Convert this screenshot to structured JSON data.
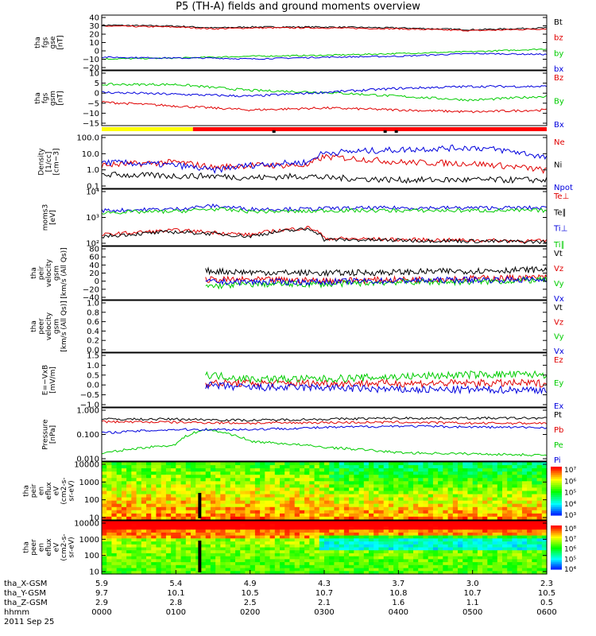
{
  "title": "P5 (TH-A) fields and ground moments overview",
  "colors": {
    "black": "#000000",
    "red": "#e00000",
    "green": "#00cc00",
    "blue": "#0000dd",
    "bar_yellow": "#ffff00",
    "bar_red": "#ff0000"
  },
  "chart_data": [
    {
      "type": "line",
      "ylabel": [
        "tha",
        "fgs",
        "gse",
        "[nT]"
      ],
      "ylim": [
        -20,
        40
      ],
      "yticks": [
        "40",
        "30",
        "20",
        "10",
        "0",
        "−10",
        "−20"
      ],
      "legend": [
        {
          "name": "Bt",
          "color": "black"
        },
        {
          "name": "bz",
          "color": "red"
        },
        {
          "name": "by",
          "color": "green"
        },
        {
          "name": "bx",
          "color": "blue"
        }
      ],
      "series": [
        {
          "name": "Bt",
          "x": [
            0,
            1,
            1.5,
            2,
            3,
            4,
            5,
            6
          ],
          "values": [
            29,
            28,
            26,
            27,
            27,
            26,
            24,
            26
          ]
        },
        {
          "name": "bz",
          "x": [
            0,
            1,
            1.5,
            2,
            3,
            4,
            5,
            6
          ],
          "values": [
            28,
            27,
            25,
            26,
            26,
            25,
            23,
            25
          ]
        },
        {
          "name": "by",
          "x": [
            0,
            1,
            1.5,
            2,
            3,
            4,
            5,
            6
          ],
          "values": [
            -8,
            -7,
            -6,
            -5,
            -4,
            -2,
            0,
            3
          ]
        },
        {
          "name": "bx",
          "x": [
            0,
            1,
            1.5,
            2,
            3,
            4,
            5,
            6
          ],
          "values": [
            -6,
            -7,
            -7,
            -8,
            -6,
            -5,
            -2,
            -3
          ]
        }
      ]
    },
    {
      "type": "line",
      "ylabel": [
        "tha",
        "fgs",
        "gsm",
        "[nT]"
      ],
      "ylim": [
        -18,
        10
      ],
      "yticks": [
        "10",
        "5",
        "0",
        "−5",
        "−10",
        "−15"
      ],
      "legend": [
        {
          "name": "Bz",
          "color": "red"
        },
        {
          "name": "By",
          "color": "green"
        },
        {
          "name": "Bx",
          "color": "blue"
        }
      ],
      "series": [
        {
          "name": "Bz",
          "x": [
            0,
            1,
            2,
            3,
            4,
            5,
            6
          ],
          "values": [
            -6,
            -8,
            -10,
            -9,
            -10,
            -11,
            -10
          ]
        },
        {
          "name": "By",
          "x": [
            0,
            1,
            2,
            3,
            4,
            5,
            6
          ],
          "values": [
            3,
            3,
            0,
            -1,
            -3,
            -5,
            -3
          ]
        },
        {
          "name": "Bx",
          "x": [
            0,
            1,
            2,
            3,
            4,
            5,
            6
          ],
          "values": [
            -1,
            -2,
            -3,
            -1,
            1,
            2,
            2
          ]
        }
      ]
    },
    {
      "type": "line",
      "scale": "log",
      "ylabel": [
        "Density",
        "[1/cc]",
        "[cm−3]"
      ],
      "ylim": [
        0.1,
        100
      ],
      "yticks": [
        "100.0",
        "10.0",
        "1.0",
        "0.1"
      ],
      "legend": [
        {
          "name": "Ne",
          "color": "red"
        },
        {
          "name": "Ni",
          "color": "black"
        },
        {
          "name": "Npot",
          "color": "blue"
        }
      ],
      "series": [
        {
          "name": "Ne",
          "x": [
            0,
            1,
            1.5,
            2,
            2.8,
            3,
            4,
            5,
            6
          ],
          "values": [
            2,
            3,
            1.5,
            2,
            2,
            6,
            3,
            2.5,
            1
          ]
        },
        {
          "name": "Ni",
          "x": [
            0,
            1,
            1.5,
            2,
            2.8,
            3,
            4,
            5,
            6
          ],
          "values": [
            0.6,
            0.5,
            0.5,
            0.4,
            0.5,
            0.4,
            0.3,
            0.3,
            0.3
          ]
        },
        {
          "name": "Npot",
          "x": [
            0,
            1,
            1.5,
            2,
            2.8,
            3,
            4,
            5,
            6
          ],
          "values": [
            3,
            2,
            1,
            2,
            3,
            10,
            15,
            20,
            5
          ]
        }
      ]
    },
    {
      "type": "line",
      "scale": "log",
      "ylabel": [
        "moms3",
        "[eV]"
      ],
      "ylim": [
        20,
        100000
      ],
      "yticks": [
        "10⁴",
        "10³",
        "10²"
      ],
      "legend": [
        {
          "name": "Te⊥",
          "color": "red"
        },
        {
          "name": "Te∥",
          "color": "black"
        },
        {
          "name": "Ti⊥",
          "color": "blue"
        },
        {
          "name": "Ti∥",
          "color": "green"
        }
      ],
      "series": [
        {
          "name": "Te⊥",
          "x": [
            0,
            1,
            1.5,
            2,
            2.8,
            3,
            4,
            5,
            6
          ],
          "values": [
            100,
            200,
            150,
            100,
            300,
            60,
            50,
            45,
            40
          ]
        },
        {
          "name": "Te∥",
          "x": [
            0,
            1,
            1.5,
            2,
            2.8,
            3,
            4,
            5,
            6
          ],
          "values": [
            80,
            160,
            120,
            80,
            250,
            50,
            45,
            40,
            35
          ]
        },
        {
          "name": "Ti⊥",
          "x": [
            0,
            1,
            1.5,
            2,
            2.8,
            3,
            4,
            5,
            6
          ],
          "values": [
            4000,
            5000,
            8000,
            5000,
            5000,
            5500,
            6000,
            6000,
            6000
          ]
        },
        {
          "name": "Ti∥",
          "x": [
            0,
            1,
            1.5,
            2,
            2.8,
            3,
            4,
            5,
            6
          ],
          "values": [
            3000,
            3500,
            5000,
            3500,
            3500,
            4000,
            4000,
            4000,
            4000
          ]
        }
      ]
    },
    {
      "type": "line",
      "ylabel": [
        "tha",
        "peir",
        "velocity",
        "gsm",
        "[km/s (All Qs)]"
      ],
      "ylim": [
        -40,
        80
      ],
      "yticks": [
        "80",
        "60",
        "40",
        "20",
        "0",
        "−20",
        "−40"
      ],
      "legend": [
        {
          "name": "Vt",
          "color": "black"
        },
        {
          "name": "Vz",
          "color": "red"
        },
        {
          "name": "Vy",
          "color": "green"
        },
        {
          "name": "Vx",
          "color": "blue"
        }
      ],
      "series": [
        {
          "name": "Vt",
          "x": [
            1.4,
            2,
            3,
            4,
            5,
            6
          ],
          "values": [
            25,
            22,
            20,
            22,
            25,
            28
          ]
        },
        {
          "name": "Vz",
          "x": [
            1.4,
            2,
            3,
            4,
            5,
            6
          ],
          "values": [
            5,
            5,
            3,
            5,
            8,
            10
          ]
        },
        {
          "name": "Vy",
          "x": [
            1.4,
            2,
            3,
            4,
            5,
            6
          ],
          "values": [
            -10,
            -5,
            -5,
            0,
            0,
            5
          ]
        },
        {
          "name": "Vx",
          "x": [
            1.4,
            2,
            3,
            4,
            5,
            6
          ],
          "values": [
            0,
            0,
            0,
            3,
            5,
            5
          ]
        }
      ]
    },
    {
      "type": "line",
      "ylabel": [
        "tha",
        "peer",
        "velocity",
        "gsm",
        "[km/s (All Qs)]"
      ],
      "ylim": [
        0,
        1
      ],
      "yticks": [
        "1.0",
        "0.8",
        "0.6",
        "0.4",
        "0.2",
        "0.0"
      ],
      "legend": [
        {
          "name": "Vt",
          "color": "black"
        },
        {
          "name": "Vz",
          "color": "red"
        },
        {
          "name": "Vy",
          "color": "green"
        },
        {
          "name": "Vx",
          "color": "blue"
        }
      ],
      "series": []
    },
    {
      "type": "line",
      "ylabel": [
        "E=−VxB",
        "[mV/m]"
      ],
      "ylim": [
        -1,
        1.5
      ],
      "yticks": [
        "1.5",
        "1.0",
        "0.5",
        "0.0",
        "−0.5",
        "−1.0"
      ],
      "legend": [
        {
          "name": "Ez",
          "color": "red"
        },
        {
          "name": "Ey",
          "color": "green"
        },
        {
          "name": "Ex",
          "color": "blue"
        }
      ],
      "series": [
        {
          "name": "Ez",
          "x": [
            1.4,
            2,
            3,
            4,
            5,
            6
          ],
          "values": [
            0.1,
            0.1,
            0.1,
            0.1,
            0.1,
            0.1
          ]
        },
        {
          "name": "Ey",
          "x": [
            1.4,
            2,
            3,
            4,
            5,
            6
          ],
          "values": [
            0.5,
            0.3,
            0.3,
            0.4,
            0.5,
            0.5
          ]
        },
        {
          "name": "Ex",
          "x": [
            1.4,
            2,
            3,
            4,
            5,
            6
          ],
          "values": [
            0,
            -0.1,
            -0.1,
            -0.2,
            -0.2,
            -0.2
          ]
        }
      ]
    },
    {
      "type": "line",
      "scale": "log",
      "ylabel": [
        "Pressure",
        "[nPa]"
      ],
      "ylim": [
        0.003,
        1.5
      ],
      "yticks": [
        "1.000",
        "0.100",
        "0.010"
      ],
      "legend": [
        {
          "name": "Pt",
          "color": "black"
        },
        {
          "name": "Pb",
          "color": "red"
        },
        {
          "name": "Pe",
          "color": "green"
        },
        {
          "name": "Pi",
          "color": "blue"
        }
      ],
      "series": [
        {
          "name": "Pt",
          "x": [
            0,
            1,
            2,
            3,
            4,
            5,
            6
          ],
          "values": [
            0.4,
            0.4,
            0.35,
            0.4,
            0.45,
            0.45,
            0.45
          ]
        },
        {
          "name": "Pb",
          "x": [
            0,
            1,
            2,
            3,
            4,
            5,
            6
          ],
          "values": [
            0.3,
            0.28,
            0.25,
            0.27,
            0.28,
            0.25,
            0.25
          ]
        },
        {
          "name": "Pe",
          "x": [
            0,
            1,
            1.4,
            2,
            3,
            4,
            5,
            6
          ],
          "values": [
            0.007,
            0.02,
            0.12,
            0.03,
            0.015,
            0.008,
            0.007,
            0.006
          ]
        },
        {
          "name": "Pi",
          "x": [
            0,
            1,
            2,
            3,
            4,
            5,
            6
          ],
          "values": [
            0.08,
            0.12,
            0.12,
            0.15,
            0.18,
            0.16,
            0.15
          ]
        }
      ]
    },
    {
      "type": "heatmap",
      "scale": "log",
      "ylabel": [
        "tha",
        "peir",
        "en",
        "eflux",
        "eV",
        "(cm2-s-",
        "sr-eV)"
      ],
      "ylim": [
        10,
        20000
      ],
      "yticks": [
        "10000",
        "1000",
        "100",
        "10"
      ],
      "colorbar_ticks": [
        "10⁷",
        "10⁶",
        "10⁵",
        "10⁴",
        "10³"
      ]
    },
    {
      "type": "heatmap",
      "scale": "log",
      "ylabel": [
        "tha",
        "peer",
        "en",
        "eflux",
        "eV",
        "(cm2-s-",
        "sr-eV)"
      ],
      "ylim": [
        10,
        20000
      ],
      "yticks": [
        "10000",
        "1000",
        "100",
        "10"
      ],
      "colorbar_ticks": [
        "10⁸",
        "10⁷",
        "10⁶",
        "10⁵",
        "10⁴"
      ]
    }
  ],
  "xaxis": {
    "rows": [
      {
        "label": "tha_X-GSM",
        "values": [
          "5.9",
          "5.4",
          "4.9",
          "4.3",
          "3.7",
          "3.0",
          "2.3"
        ]
      },
      {
        "label": "tha_Y-GSM",
        "values": [
          "9.7",
          "10.1",
          "10.5",
          "10.7",
          "10.8",
          "10.7",
          "10.5"
        ]
      },
      {
        "label": "tha_Z-GSM",
        "values": [
          "2.9",
          "2.8",
          "2.5",
          "2.1",
          "1.6",
          "1.1",
          "0.5"
        ]
      },
      {
        "label": "hhmm",
        "values": [
          "0000",
          "0100",
          "0200",
          "0300",
          "0400",
          "0500",
          "0600"
        ]
      }
    ],
    "date": "2011 Sep 25"
  }
}
